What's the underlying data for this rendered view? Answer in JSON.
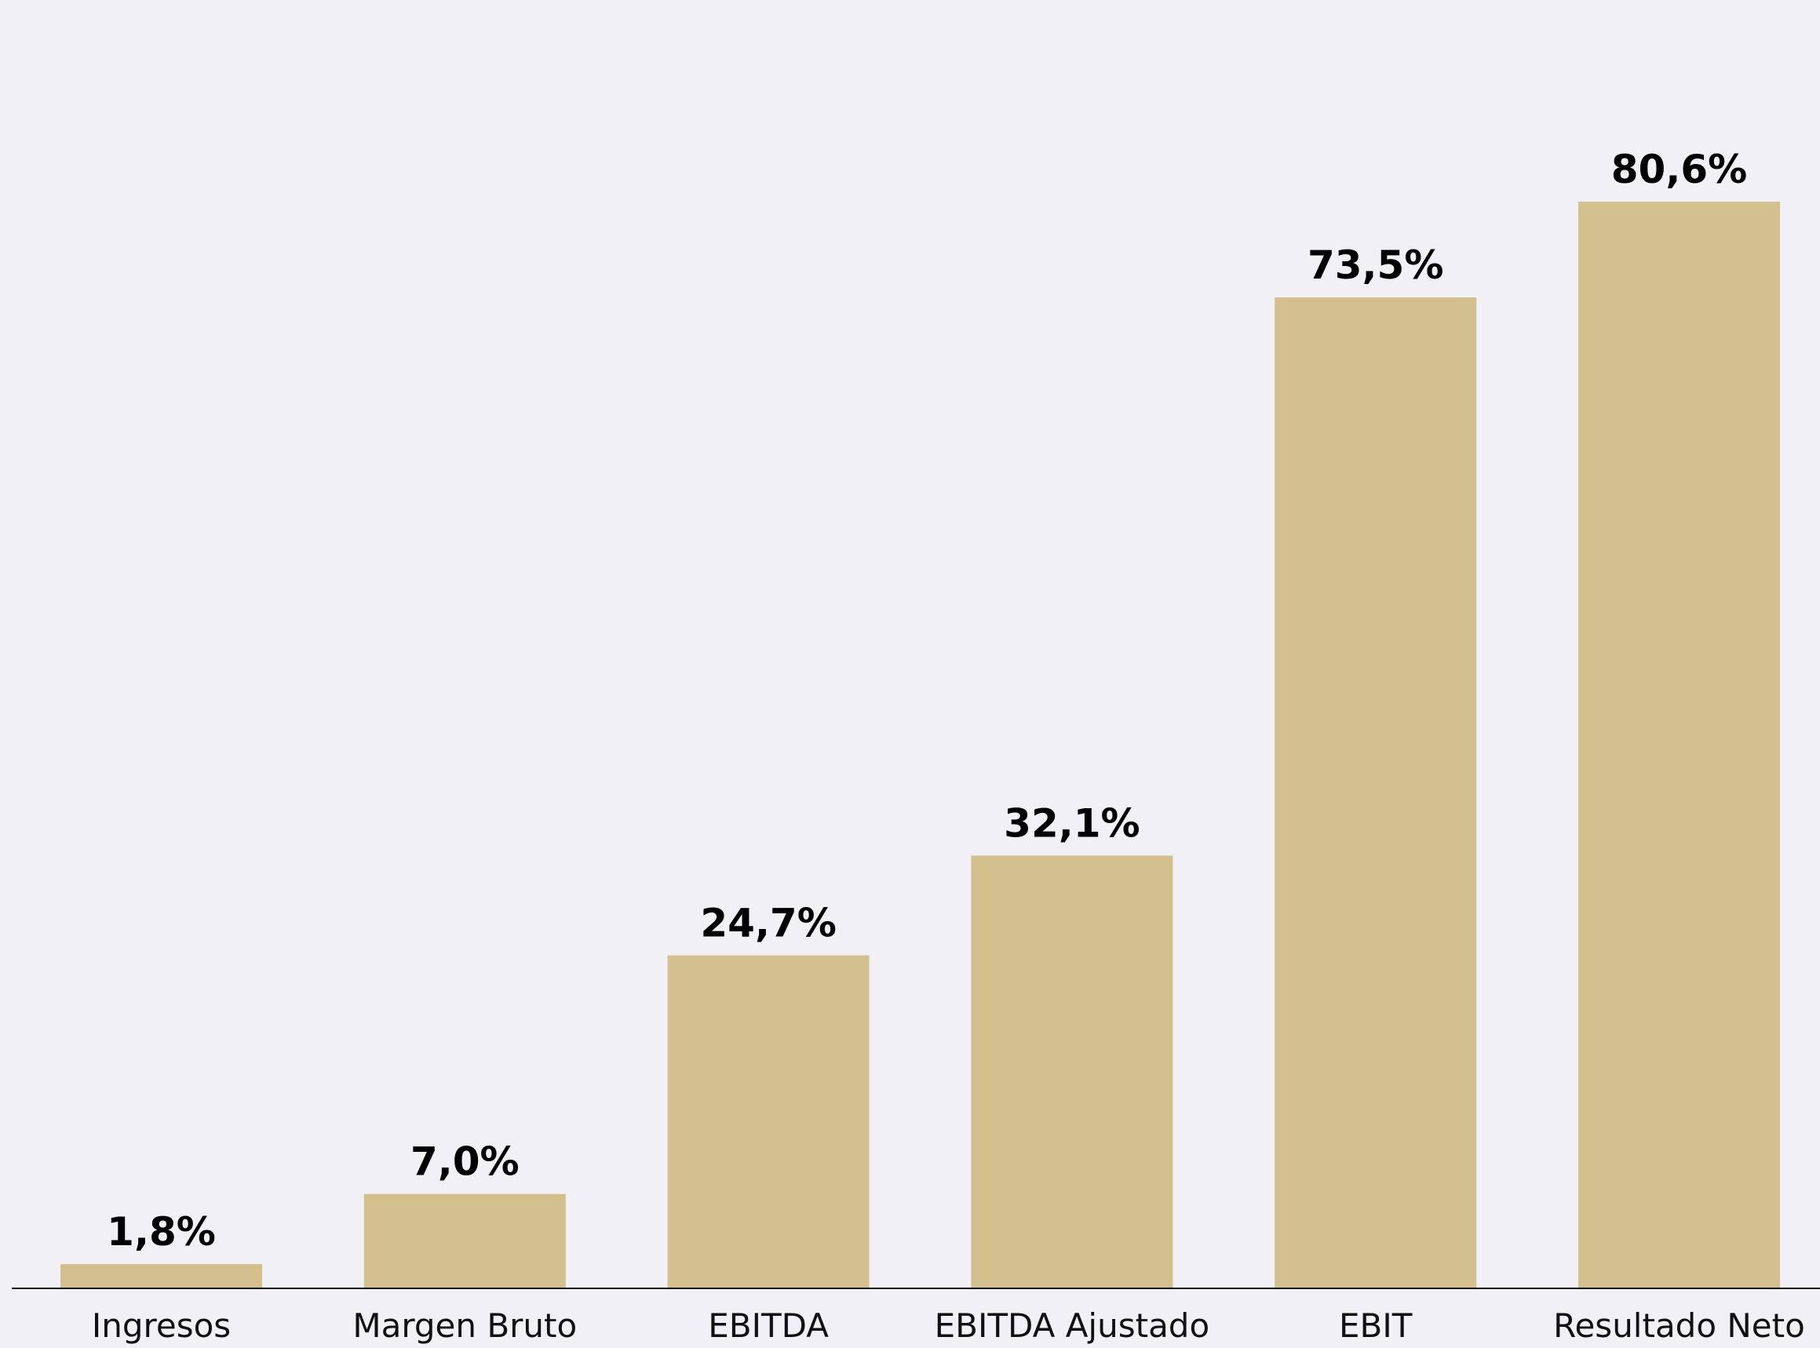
{
  "chart_data": {
    "type": "bar",
    "categories": [
      "Ingresos",
      "Margen Bruto",
      "EBITDA",
      "EBITDA Ajustado",
      "EBIT",
      "Resultado Neto"
    ],
    "values": [
      1.8,
      7.0,
      24.7,
      32.1,
      73.5,
      80.6
    ],
    "value_labels": [
      "1,8%",
      "7,0%",
      "24,7%",
      "32,1%",
      "73,5%",
      "80,6%"
    ],
    "color": "#d4bf8e"
  }
}
